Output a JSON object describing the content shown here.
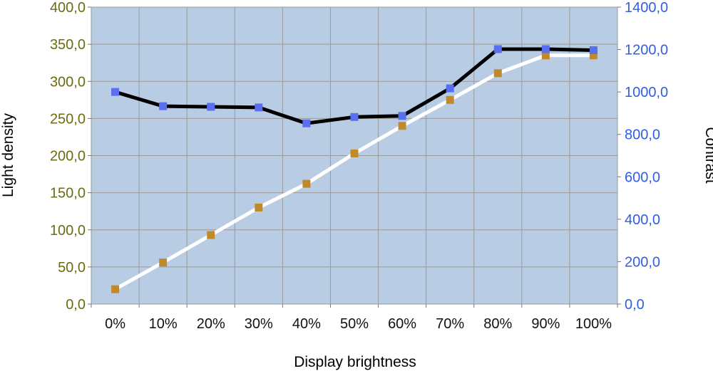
{
  "chart_data": {
    "type": "line",
    "title": "",
    "xlabel": "Display brightness",
    "ylabel": "Light density",
    "y2label": "Contrast",
    "categories": [
      "0%",
      "10%",
      "20%",
      "30%",
      "40%",
      "50%",
      "60%",
      "70%",
      "80%",
      "90%",
      "100%"
    ],
    "ylim": [
      0,
      400
    ],
    "y2lim": [
      0,
      1400
    ],
    "yticks": [
      "0,0",
      "50,0",
      "100,0",
      "150,0",
      "200,0",
      "250,0",
      "300,0",
      "350,0",
      "400,0"
    ],
    "y2ticks": [
      "0,0",
      "200,0",
      "400,0",
      "600,0",
      "800,0",
      "1000,0",
      "1200,0",
      "1400,0"
    ],
    "grid": true,
    "series": [
      {
        "axis": "left",
        "values": [
          20,
          56,
          93,
          130,
          162,
          203,
          240,
          275,
          311,
          335,
          335
        ],
        "line_color": "#ffffff",
        "marker_color": "#c08a2a"
      },
      {
        "axis": "right",
        "values": [
          1000,
          933,
          930,
          927,
          852,
          882,
          887,
          1017,
          1202,
          1202,
          1197
        ],
        "line_color": "#000000",
        "marker_color": "#5a6ef0"
      }
    ],
    "colors": {
      "plot_background": "#b8cce4",
      "gridline": "#9a9a9a",
      "left_tick_color": "#6b6b12",
      "right_tick_color": "#2f5fe0"
    }
  }
}
